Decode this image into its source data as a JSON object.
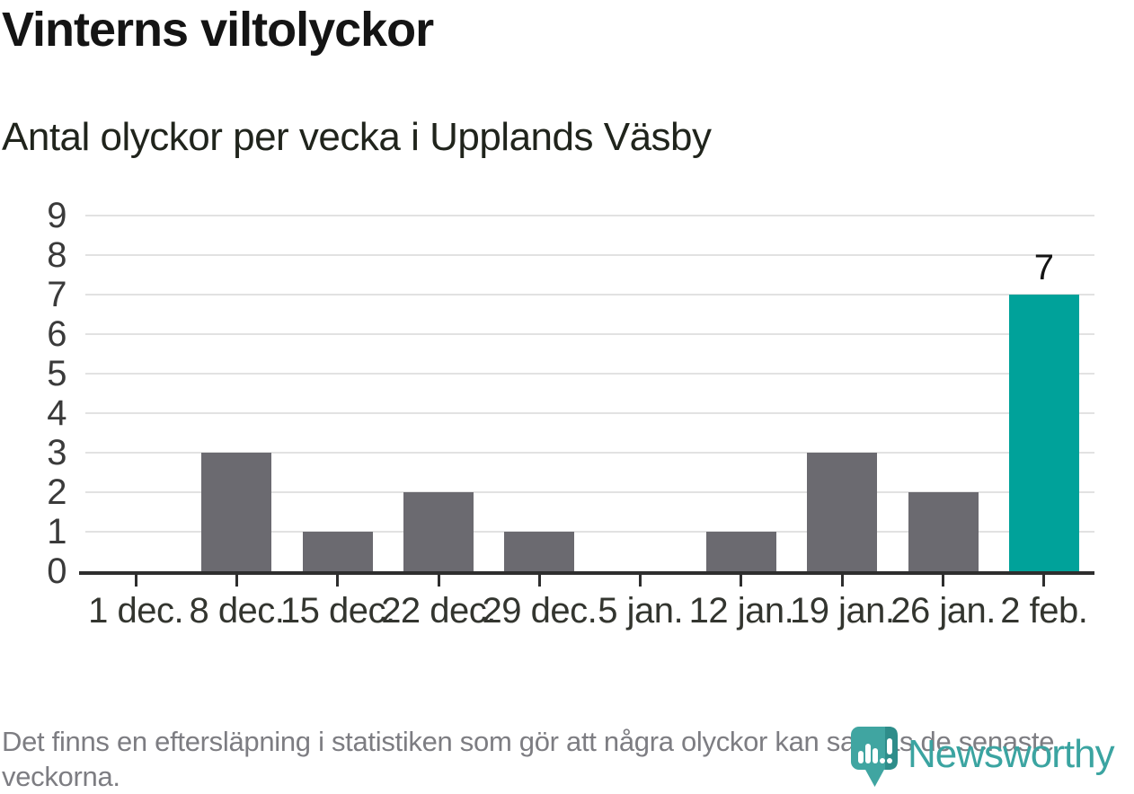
{
  "header": {
    "title": "Vinterns viltolyckor",
    "subtitle": "Antal olyckor per vecka i Upplands Väsby"
  },
  "chart_data": {
    "type": "bar",
    "categories": [
      "1 dec.",
      "8 dec.",
      "15 dec.",
      "22 dec.",
      "29 dec.",
      "5 jan.",
      "12 jan.",
      "19 jan.",
      "26 jan.",
      "2 feb."
    ],
    "values": [
      0,
      3,
      1,
      2,
      1,
      0,
      1,
      3,
      2,
      7
    ],
    "title": "Vinterns viltolyckor",
    "subtitle": "Antal olyckor per vecka i Upplands Väsby",
    "xlabel": "",
    "ylabel": "",
    "ylim": [
      0,
      9
    ],
    "yticks": [
      0,
      1,
      2,
      3,
      4,
      5,
      6,
      7,
      8,
      9
    ],
    "grid": true,
    "legend": "none",
    "bar_color": "#6B6A70",
    "highlight_index": 9,
    "highlight_color": "#00A29A",
    "highlight_value_label": "7"
  },
  "footer": {
    "note": "Det finns en eftersläpning i statistiken som gör att några olyckor kan saknas de senaste veckorna.",
    "logo_text": "Newsworthy",
    "logo_color": "#3BA4A1"
  }
}
